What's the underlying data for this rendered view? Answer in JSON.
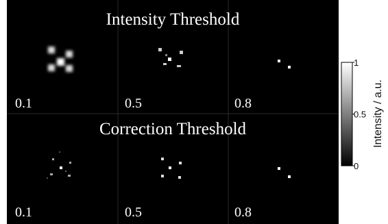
{
  "rows": [
    {
      "title": "Intensity Threshold",
      "labels": [
        0.1,
        0.5,
        0.8
      ]
    },
    {
      "title": "Correction Threshold",
      "labels": [
        0.1,
        0.5,
        0.8
      ]
    }
  ],
  "colorbar": {
    "label": "Intensity / a.u.",
    "lim": [
      0,
      1
    ],
    "ticks": [
      0,
      0.5,
      1
    ]
  }
}
